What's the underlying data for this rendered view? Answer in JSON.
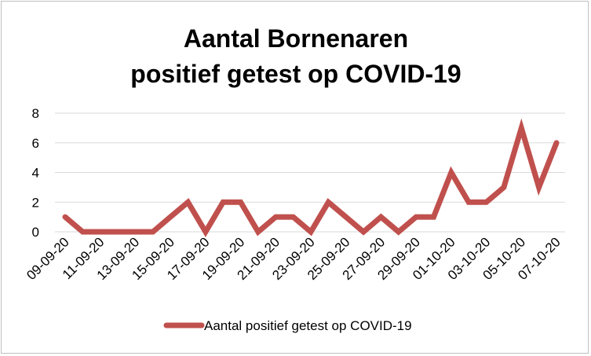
{
  "chart_data": {
    "type": "line",
    "title_lines": [
      "Aantal Bornenaren",
      "positief getest op COVID-19"
    ],
    "x": [
      "09-09-20",
      "10-09-20",
      "11-09-20",
      "12-09-20",
      "13-09-20",
      "14-09-20",
      "15-09-20",
      "16-09-20",
      "17-09-20",
      "18-09-20",
      "19-09-20",
      "20-09-20",
      "21-09-20",
      "22-09-20",
      "23-09-20",
      "24-09-20",
      "25-09-20",
      "26-09-20",
      "27-09-20",
      "28-09-20",
      "29-09-20",
      "30-09-20",
      "01-10-20",
      "02-10-20",
      "03-10-20",
      "04-10-20",
      "05-10-20",
      "06-10-20",
      "07-10-20"
    ],
    "x_tick_labels": [
      "09-09-20",
      "11-09-20",
      "13-09-20",
      "15-09-20",
      "17-09-20",
      "19-09-20",
      "21-09-20",
      "23-09-20",
      "25-09-20",
      "27-09-20",
      "29-09-20",
      "01-10-20",
      "03-10-20",
      "05-10-20",
      "07-10-20"
    ],
    "series": [
      {
        "name": "Aantal positief getest op COVID-19",
        "values": [
          1,
          0,
          0,
          0,
          0,
          0,
          1,
          2,
          0,
          2,
          2,
          0,
          1,
          1,
          0,
          2,
          1,
          0,
          1,
          0,
          1,
          1,
          4,
          2,
          2,
          3,
          7,
          3,
          6
        ]
      }
    ],
    "ylim": [
      0,
      8
    ],
    "y_ticks": [
      0,
      2,
      4,
      6,
      8
    ],
    "grid": true,
    "legend_position": "bottom",
    "line_color": "#c0504d",
    "grid_color": "#d9d9d9"
  }
}
